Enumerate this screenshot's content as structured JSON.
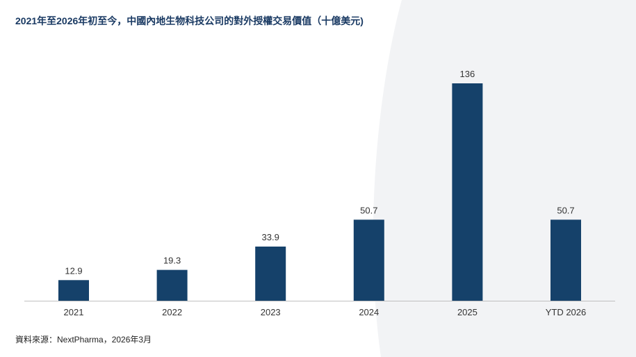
{
  "chart_data": {
    "type": "bar",
    "title": "2021年至2026年初至今，中國內地生物科技公司的對外授權交易價值（十億美元)",
    "categories": [
      "2021",
      "2022",
      "2023",
      "2024",
      "2025",
      "YTD 2026"
    ],
    "values": [
      12.9,
      19.3,
      33.9,
      50.7,
      136,
      50.7
    ],
    "value_labels": [
      "12.9",
      "19.3",
      "33.9",
      "50.7",
      "136",
      "50.7"
    ],
    "xlabel": "",
    "ylabel": "",
    "ylim": [
      0,
      136
    ],
    "grid": false,
    "legend": "none",
    "bar_color": "#15416a",
    "source": "資料來源：NextPharma，2026年3月"
  },
  "colors": {
    "title": "#1a3a63",
    "background_shape": "#f2f3f5",
    "axis": "#bfbfbf"
  }
}
